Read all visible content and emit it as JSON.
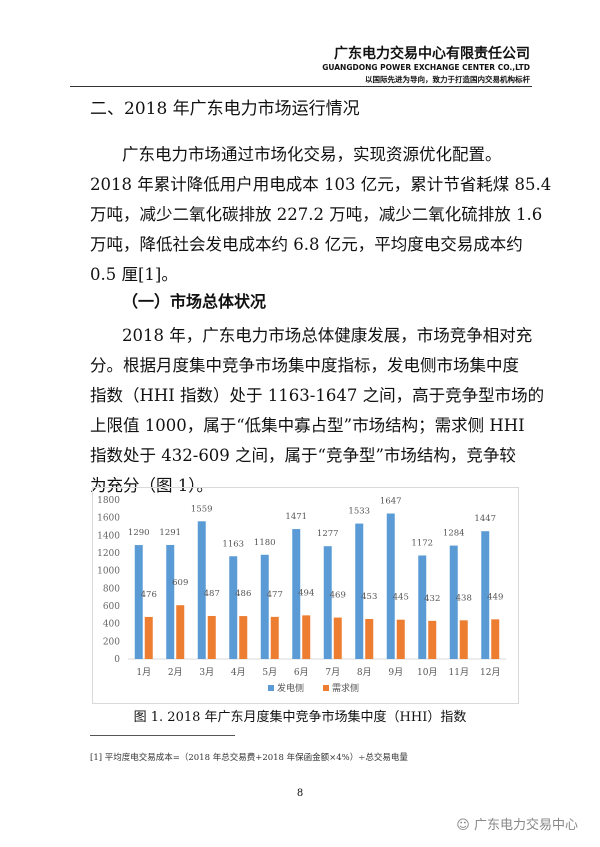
{
  "header": {
    "company_cn": "广东电力交易中心有限责任公司",
    "company_en": "GUANGDONG POWER EXCHANGE CENTER CO.,LTD",
    "slogan": "以国际先进为导向，致力于打造国内交易机构标杆"
  },
  "section_title": "二、2018 年广东电力市场运行情况",
  "para1_lines": [
    "广东电力市场通过市场化交易，实现资源优化配置。",
    "2018 年累计降低用户用电成本 103 亿元，累计节省耗煤 85.4",
    "万吨，减少二氧化碳排放 227.2 万吨，减少二氧化硫排放 1.6",
    "万吨，降低社会发电成本约 6.8 亿元，平均度电交易成本约",
    "0.5 厘[1]。"
  ],
  "subsection_title": "（一）市场总体状况",
  "para2_lines": [
    "2018 年，广东电力市场总体健康发展，市场竞争相对充",
    "分。根据月度集中竞争市场集中度指标，发电侧市场集中度",
    "指数（HHI 指数）处于 1163-1647 之间，高于竞争型市场的",
    "上限值 1000，属于“低集中寡占型”市场结构；需求侧 HHI",
    "指数处于 432-609 之间，属于“竞争型”市场结构，竞争较",
    "为充分（图 1）。"
  ],
  "chart_data": {
    "type": "bar",
    "categories": [
      "1月",
      "2月",
      "3月",
      "4月",
      "5月",
      "6月",
      "7月",
      "8月",
      "9月",
      "10月",
      "11月",
      "12月"
    ],
    "series": [
      {
        "name": "发电侧",
        "color": "#5b9bd5",
        "values": [
          1290,
          1291,
          1559,
          1163,
          1180,
          1471,
          1277,
          1533,
          1647,
          1172,
          1284,
          1447
        ]
      },
      {
        "name": "需求侧",
        "color": "#ed7d31",
        "values": [
          476,
          609,
          487,
          486,
          477,
          494,
          469,
          453,
          445,
          432,
          438,
          449
        ]
      }
    ],
    "yticks": [
      "0",
      "200",
      "400",
      "600",
      "800",
      "1000",
      "1200",
      "1400",
      "1600",
      "1800"
    ],
    "ylim": [
      0,
      1800
    ],
    "grid": false,
    "legend": "bottom"
  },
  "caption": "图 1. 2018 年广东月度集中竞争市场集中度（HHI）指数",
  "footnote": "[1] 平均度电交易成本=（2018 年总交易费+2018 年保函金额×4%）÷总交易电量",
  "page_number": "8",
  "watermark": "广东电力交易中心"
}
